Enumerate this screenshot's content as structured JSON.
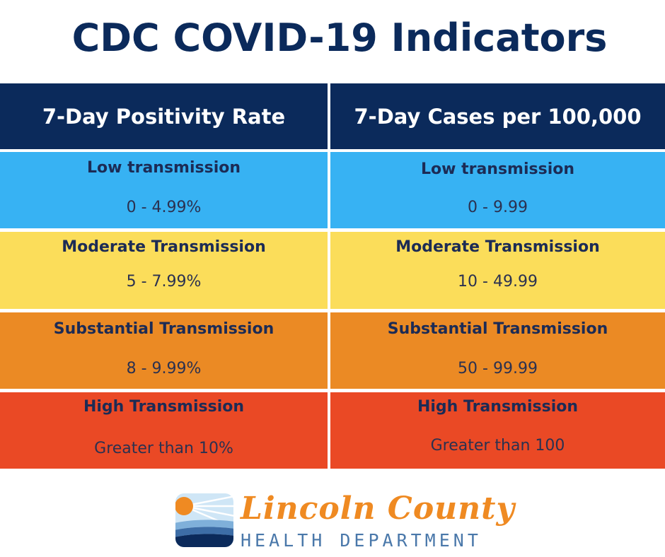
{
  "title": "CDC COVID-19 Indicators",
  "columns": [
    {
      "header": "7-Day Positivity Rate",
      "rows": [
        {
          "level": "Low transmission",
          "range": "0 - 4.99%"
        },
        {
          "level": "Moderate Transmission",
          "range": "5 - 7.99%"
        },
        {
          "level": "Substantial Transmission",
          "range": "8 - 9.99%"
        },
        {
          "level": "High Transmission",
          "range": "Greater than 10%"
        }
      ]
    },
    {
      "header": "7-Day Cases per 100,000",
      "rows": [
        {
          "level": "Low transmission",
          "range": "0 - 9.99"
        },
        {
          "level": "Moderate Transmission",
          "range": "10 - 49.99"
        },
        {
          "level": "Substantial Transmission",
          "range": "50 - 99.99"
        },
        {
          "level": "High Transmission",
          "range": "Greater than 100"
        }
      ]
    }
  ],
  "logo": {
    "name": "Lincoln County",
    "subtitle": "HEALTH DEPARTMENT"
  },
  "colors": {
    "navy": "#0b2a5b",
    "low": "#37b2f3",
    "moderate": "#fbdd5a",
    "substantial": "#eb8a24",
    "high": "#ea4925"
  }
}
